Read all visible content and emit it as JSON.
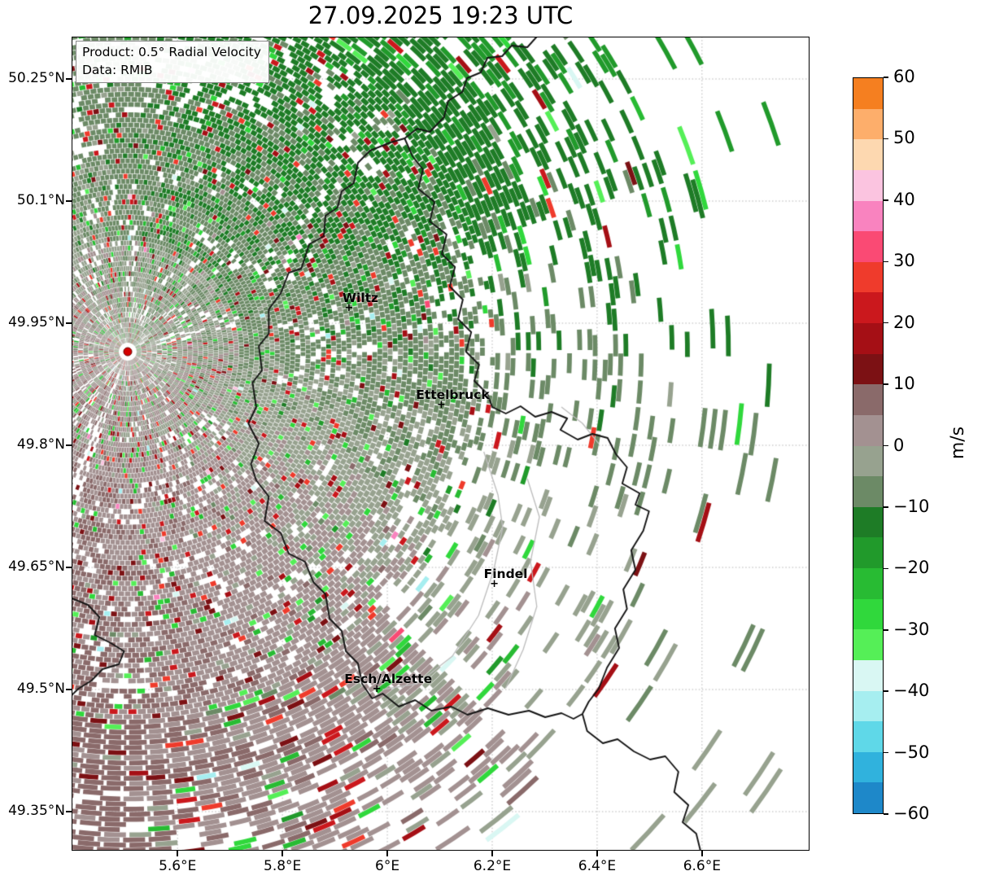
{
  "title": "27.09.2025 19:23 UTC",
  "product_box": {
    "line1": "Product: 0.5° Radial Velocity",
    "line2": "Data: RMIB"
  },
  "axes": {
    "lon_range": [
      5.398,
      6.805
    ],
    "lat_range": [
      49.302,
      50.302
    ],
    "x_ticks": [
      {
        "label": "5.6°E",
        "lon": 5.6
      },
      {
        "label": "5.8°E",
        "lon": 5.8
      },
      {
        "label": "6°E",
        "lon": 6.0
      },
      {
        "label": "6.2°E",
        "lon": 6.2
      },
      {
        "label": "6.4°E",
        "lon": 6.4
      },
      {
        "label": "6.6°E",
        "lon": 6.6
      }
    ],
    "y_ticks": [
      {
        "label": "50.25°N",
        "lat": 50.25
      },
      {
        "label": "50.1°N",
        "lat": 50.1
      },
      {
        "label": "49.95°N",
        "lat": 49.95
      },
      {
        "label": "49.8°N",
        "lat": 49.8
      },
      {
        "label": "49.65°N",
        "lat": 49.65
      },
      {
        "label": "49.5°N",
        "lat": 49.5
      },
      {
        "label": "49.35°N",
        "lat": 49.35
      }
    ]
  },
  "colorbar": {
    "unit": "m/s",
    "tick_labels": [
      {
        "label": "60",
        "value": 60
      },
      {
        "label": "50",
        "value": 50
      },
      {
        "label": "40",
        "value": 40
      },
      {
        "label": "30",
        "value": 30
      },
      {
        "label": "20",
        "value": 20
      },
      {
        "label": "10",
        "value": 10
      },
      {
        "label": "0",
        "value": 0
      },
      {
        "label": "−10",
        "value": -10
      },
      {
        "label": "−20",
        "value": -20
      },
      {
        "label": "−30",
        "value": -30
      },
      {
        "label": "−40",
        "value": -40
      },
      {
        "label": "−50",
        "value": -50
      },
      {
        "label": "−60",
        "value": -60
      }
    ],
    "segments": [
      [
        -60,
        -55,
        "#1e88c9"
      ],
      [
        -55,
        -50,
        "#30b2dd"
      ],
      [
        -50,
        -45,
        "#5fd8e8"
      ],
      [
        -45,
        -40,
        "#a6eef0"
      ],
      [
        -40,
        -35,
        "#d9f7f3"
      ],
      [
        -35,
        -30,
        "#55ef57"
      ],
      [
        -30,
        -25,
        "#30d83c"
      ],
      [
        -25,
        -20,
        "#28bb33"
      ],
      [
        -20,
        -15,
        "#219a2b"
      ],
      [
        -15,
        -10,
        "#1e7c26"
      ],
      [
        -10,
        -5,
        "#6c8a66"
      ],
      [
        -5,
        0,
        "#97a28f"
      ],
      [
        0,
        5,
        "#a39191"
      ],
      [
        5,
        10,
        "#8a6a6a"
      ],
      [
        10,
        15,
        "#7c1114"
      ],
      [
        15,
        20,
        "#a50f15"
      ],
      [
        20,
        25,
        "#cb181d"
      ],
      [
        25,
        30,
        "#ef3b2c"
      ],
      [
        30,
        35,
        "#fa4a74"
      ],
      [
        35,
        40,
        "#f983bf"
      ],
      [
        40,
        45,
        "#fbc4e0"
      ],
      [
        45,
        50,
        "#fdd8b0"
      ],
      [
        50,
        55,
        "#fdae6b"
      ],
      [
        55,
        60,
        "#f57f20"
      ]
    ]
  },
  "map": {
    "cities": [
      {
        "name": "Wiltz",
        "lon": 5.927,
        "lat": 49.968
      },
      {
        "name": "Ettelbruck",
        "lon": 6.103,
        "lat": 49.849
      },
      {
        "name": "Findel",
        "lon": 6.204,
        "lat": 49.629
      },
      {
        "name": "Esch/Alzette",
        "lon": 5.98,
        "lat": 49.5
      }
    ],
    "radar_site": {
      "lon": 5.505,
      "lat": 49.915,
      "marker_color": "#d40000"
    },
    "borders": [
      [
        [
          6.033,
          50.177
        ],
        [
          6.006,
          50.172
        ],
        [
          5.967,
          50.162
        ],
        [
          5.944,
          50.147
        ],
        [
          5.936,
          50.122
        ],
        [
          5.913,
          50.112
        ],
        [
          5.905,
          50.092
        ],
        [
          5.882,
          50.082
        ],
        [
          5.879,
          50.057
        ],
        [
          5.851,
          50.047
        ],
        [
          5.836,
          50.017
        ],
        [
          5.812,
          50.012
        ],
        [
          5.797,
          49.987
        ],
        [
          5.774,
          49.967
        ],
        [
          5.774,
          49.937
        ],
        [
          5.755,
          49.922
        ],
        [
          5.761,
          49.892
        ],
        [
          5.743,
          49.877
        ],
        [
          5.75,
          49.847
        ],
        [
          5.735,
          49.827
        ],
        [
          5.755,
          49.802
        ],
        [
          5.74,
          49.777
        ],
        [
          5.75,
          49.757
        ],
        [
          5.774,
          49.737
        ],
        [
          5.766,
          49.707
        ],
        [
          5.797,
          49.692
        ],
        [
          5.812,
          49.667
        ],
        [
          5.843,
          49.657
        ],
        [
          5.859,
          49.632
        ],
        [
          5.882,
          49.617
        ],
        [
          5.89,
          49.587
        ],
        [
          5.913,
          49.572
        ],
        [
          5.921,
          49.547
        ],
        [
          5.944,
          49.532
        ],
        [
          5.952,
          49.507
        ],
        [
          5.971,
          49.489
        ],
        [
          5.991,
          49.495
        ],
        [
          6.022,
          49.479
        ],
        [
          6.053,
          49.487
        ],
        [
          6.084,
          49.474
        ],
        [
          6.122,
          49.479
        ],
        [
          6.153,
          49.469
        ],
        [
          6.192,
          49.477
        ],
        [
          6.231,
          49.469
        ],
        [
          6.27,
          49.474
        ],
        [
          6.301,
          49.466
        ],
        [
          6.332,
          49.471
        ],
        [
          6.355,
          49.464
        ],
        [
          6.372,
          49.47
        ]
      ],
      [
        [
          6.033,
          50.177
        ],
        [
          6.048,
          50.155
        ],
        [
          6.068,
          50.139
        ],
        [
          6.059,
          50.115
        ],
        [
          6.09,
          50.099
        ],
        [
          6.081,
          50.075
        ],
        [
          6.113,
          50.059
        ],
        [
          6.104,
          50.035
        ],
        [
          6.129,
          50.019
        ],
        [
          6.119,
          49.995
        ],
        [
          6.144,
          49.979
        ],
        [
          6.135,
          49.955
        ],
        [
          6.16,
          49.939
        ],
        [
          6.15,
          49.915
        ],
        [
          6.175,
          49.899
        ],
        [
          6.166,
          49.879
        ],
        [
          6.191,
          49.863
        ],
        [
          6.2,
          49.847
        ],
        [
          6.226,
          49.839
        ],
        [
          6.254,
          49.848
        ],
        [
          6.282,
          49.835
        ],
        [
          6.313,
          49.841
        ],
        [
          6.343,
          49.833
        ],
        [
          6.33,
          49.819
        ],
        [
          6.363,
          49.807
        ],
        [
          6.391,
          49.814
        ],
        [
          6.42,
          49.809
        ],
        [
          6.436,
          49.789
        ],
        [
          6.457,
          49.773
        ],
        [
          6.448,
          49.753
        ],
        [
          6.481,
          49.741
        ],
        [
          6.473,
          49.727
        ],
        [
          6.499,
          49.719
        ],
        [
          6.488,
          49.695
        ],
        [
          6.465,
          49.671
        ],
        [
          6.473,
          49.647
        ],
        [
          6.45,
          49.623
        ],
        [
          6.457,
          49.599
        ],
        [
          6.434,
          49.575
        ],
        [
          6.442,
          49.551
        ],
        [
          6.419,
          49.527
        ],
        [
          6.403,
          49.501
        ],
        [
          6.384,
          49.485
        ],
        [
          6.372,
          49.47
        ]
      ],
      [
        [
          6.033,
          50.177
        ],
        [
          6.057,
          50.189
        ],
        [
          6.081,
          50.185
        ],
        [
          6.108,
          50.203
        ],
        [
          6.116,
          50.223
        ],
        [
          6.143,
          50.234
        ],
        [
          6.152,
          50.251
        ],
        [
          6.178,
          50.258
        ],
        [
          6.191,
          50.276
        ],
        [
          6.219,
          50.278
        ],
        [
          6.237,
          50.291
        ],
        [
          6.267,
          50.289
        ],
        [
          6.285,
          50.302
        ]
      ],
      [
        [
          6.372,
          49.47
        ],
        [
          6.381,
          49.449
        ],
        [
          6.411,
          49.434
        ],
        [
          6.439,
          49.439
        ],
        [
          6.47,
          49.424
        ],
        [
          6.501,
          49.414
        ],
        [
          6.53,
          49.418
        ],
        [
          6.555,
          49.399
        ],
        [
          6.547,
          49.374
        ],
        [
          6.574,
          49.358
        ],
        [
          6.563,
          49.337
        ],
        [
          6.589,
          49.323
        ],
        [
          6.597,
          49.302
        ]
      ],
      [
        [
          5.398,
          49.612
        ],
        [
          5.429,
          49.604
        ],
        [
          5.451,
          49.589
        ],
        [
          5.442,
          49.567
        ],
        [
          5.473,
          49.557
        ],
        [
          5.498,
          49.547
        ],
        [
          5.488,
          49.531
        ],
        [
          5.457,
          49.525
        ],
        [
          5.436,
          49.511
        ],
        [
          5.411,
          49.501
        ],
        [
          5.398,
          49.493
        ]
      ]
    ],
    "minor_lines": [
      [
        [
          6.184,
          49.792
        ],
        [
          6.211,
          49.739
        ],
        [
          6.22,
          49.699
        ],
        [
          6.203,
          49.647
        ],
        [
          6.174,
          49.591
        ],
        [
          6.124,
          49.541
        ],
        [
          6.057,
          49.507
        ],
        [
          5.991,
          49.5
        ]
      ],
      [
        [
          6.267,
          49.759
        ],
        [
          6.29,
          49.712
        ],
        [
          6.273,
          49.657
        ],
        [
          6.285,
          49.602
        ],
        [
          6.259,
          49.549
        ],
        [
          6.226,
          49.502
        ]
      ],
      [
        [
          6.332,
          49.847
        ],
        [
          6.372,
          49.827
        ],
        [
          6.403,
          49.802
        ]
      ]
    ]
  },
  "chart_data": {
    "type": "heatmap",
    "title": "27.09.2025 19:23 UTC",
    "product": "0.5° Radial Velocity",
    "data_source": "RMIB",
    "unit": "m/s",
    "value_range": [
      -60,
      60
    ],
    "colorbar_ticks": [
      60,
      50,
      40,
      30,
      20,
      10,
      0,
      -10,
      -20,
      -30,
      -40,
      -50,
      -60
    ],
    "x_axis": {
      "ticks": [
        "5.6°E",
        "5.8°E",
        "6°E",
        "6.2°E",
        "6.4°E",
        "6.6°E"
      ],
      "range_deg_e": [
        5.398,
        6.805
      ]
    },
    "y_axis": {
      "ticks": [
        "50.25°N",
        "50.1°N",
        "49.95°N",
        "49.8°N",
        "49.65°N",
        "49.5°N",
        "49.35°N"
      ],
      "range_deg_n": [
        49.302,
        50.302
      ]
    },
    "grid": "dotted",
    "legend_position": "right-colorbar",
    "radar_location_deg": {
      "lon_e": 5.505,
      "lat_n": 49.915
    },
    "annotations": [
      "Wiltz",
      "Ettelbruck",
      "Findel",
      "Esch/Alzette"
    ],
    "pattern_summary": "Inbound radial velocities (green, about -5 to -25 m/s) dominate north-east through east of the radar; weak outbound velocities (grey-mauve, 0 to +10 m/s) dominate south-west of the radar; scattered noisy gates appear as dark-red/red (+10 to +30 m/s) and bright-green speckles, with sparse elongated gates at long range."
  }
}
